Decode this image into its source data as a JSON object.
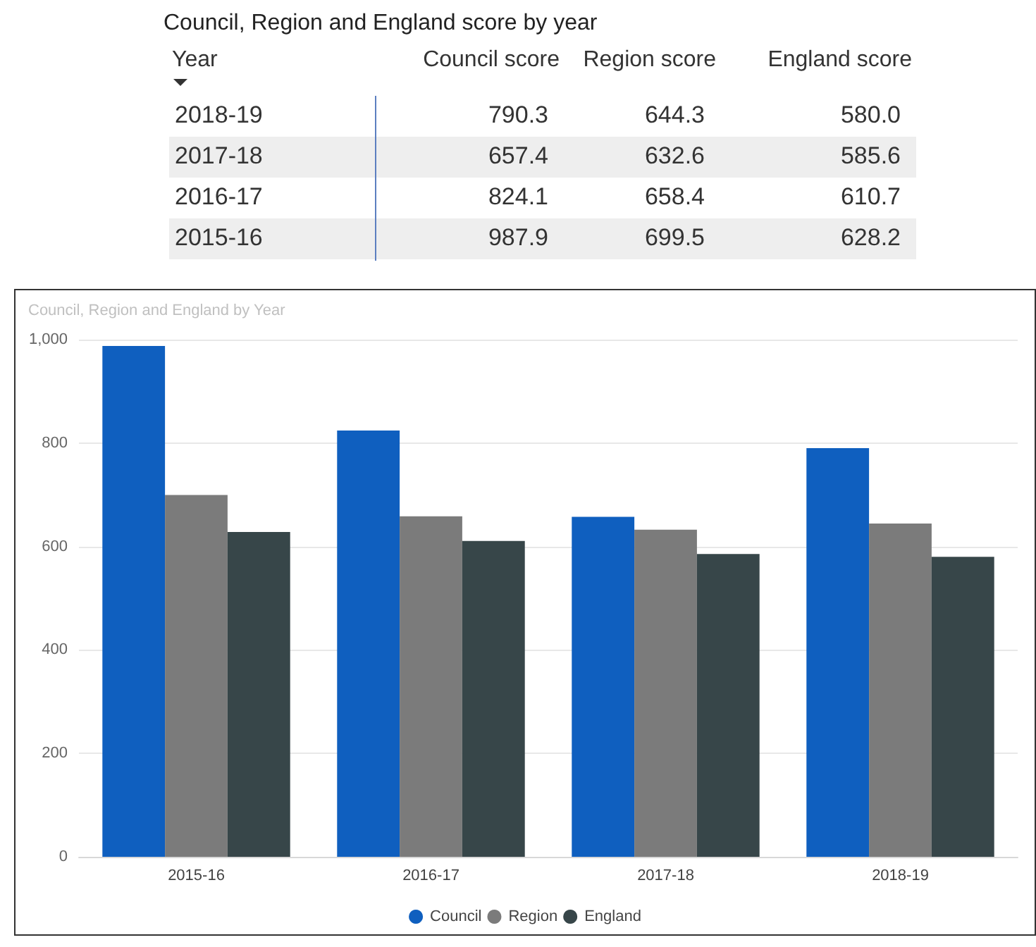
{
  "chart_data": [
    {
      "type": "other",
      "title": "Council, Region and England score by year",
      "categories": [
        "2018-19",
        "2017-18",
        "2016-17",
        "2015-16"
      ],
      "annotations": [
        "Year"
      ],
      "series": [
        {
          "name": "Council score",
          "values": [
            790.3,
            657.4,
            824.1,
            987.9
          ],
          "value_labels": [
            "790.3",
            "657.4",
            "824.1",
            "987.9"
          ]
        },
        {
          "name": "Region score",
          "values": [
            644.3,
            632.6,
            658.4,
            699.5
          ],
          "value_labels": [
            "644.3",
            "632.6",
            "658.4",
            "699.5"
          ]
        },
        {
          "name": "England score",
          "values": [
            580.0,
            585.6,
            610.7,
            628.2
          ],
          "value_labels": [
            "580.0",
            "585.6",
            "610.7",
            "628.2"
          ]
        }
      ]
    },
    {
      "type": "bar",
      "title": "Council, Region and England by Year",
      "categories": [
        "2015-16",
        "2016-17",
        "2017-18",
        "2018-19"
      ],
      "series": [
        {
          "name": "Council",
          "color": "#0f5fbf",
          "values": [
            987.9,
            824.1,
            657.4,
            790.3
          ]
        },
        {
          "name": "Region",
          "color": "#7b7b7b",
          "values": [
            699.5,
            658.4,
            632.6,
            644.3
          ]
        },
        {
          "name": "England",
          "color": "#374649",
          "values": [
            628.2,
            610.7,
            585.6,
            580.0
          ]
        }
      ],
      "ylim": [
        0,
        1000
      ],
      "yticks": [
        0,
        200,
        400,
        600,
        800,
        {
          "value": 1000,
          "label": "1,000"
        }
      ],
      "grid": "y",
      "legend": "bottom"
    }
  ]
}
